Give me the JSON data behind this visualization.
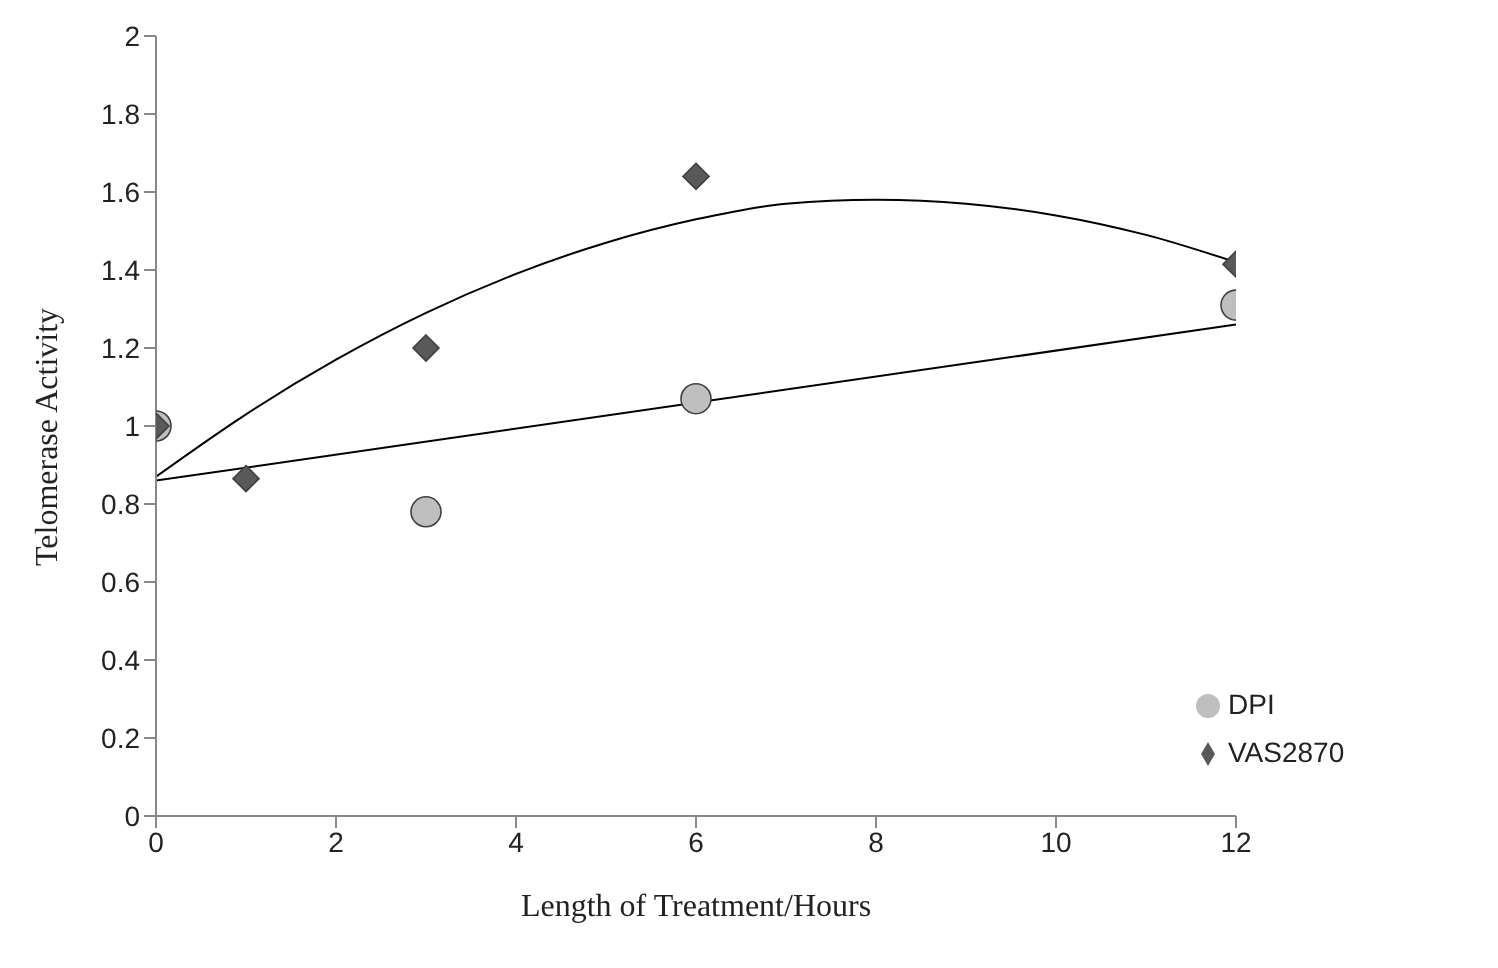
{
  "chart_data": {
    "type": "scatter",
    "xlabel": "Length of Treatment/Hours",
    "ylabel": "Telomerase Activity",
    "xlim": [
      0,
      12
    ],
    "xticks": [
      0,
      2,
      4,
      6,
      8,
      10,
      12
    ],
    "ylim": [
      0,
      2
    ],
    "yticks": [
      0,
      0.2,
      0.4,
      0.6,
      0.8,
      1,
      1.2,
      1.4,
      1.6,
      1.8,
      2
    ],
    "grid": false,
    "legend": "bottom right",
    "series": [
      {
        "name": "DPI",
        "type": "scatter",
        "marker": "circle",
        "color": "#bfbfbf",
        "x": [
          0,
          3,
          6,
          12
        ],
        "values": [
          1.0,
          0.78,
          1.07,
          1.31
        ]
      },
      {
        "name": "VAS2870",
        "type": "scatter",
        "marker": "diamond",
        "color": "#595959",
        "x": [
          0,
          1,
          3,
          6,
          12
        ],
        "values": [
          1.0,
          0.865,
          1.2,
          1.64,
          1.415
        ]
      },
      {
        "type": "line",
        "marker": "none",
        "color": "#000000",
        "x": [
          0,
          12
        ],
        "values": [
          0.86,
          1.26
        ]
      },
      {
        "type": "line",
        "marker": "none",
        "color": "#000000",
        "x": [
          0,
          1,
          2,
          3,
          4,
          5,
          6,
          7,
          8,
          9,
          10,
          11,
          12
        ],
        "values": [
          0.87,
          1.03,
          1.17,
          1.29,
          1.39,
          1.47,
          1.53,
          1.57,
          1.58,
          1.57,
          1.54,
          1.49,
          1.42
        ]
      }
    ]
  }
}
